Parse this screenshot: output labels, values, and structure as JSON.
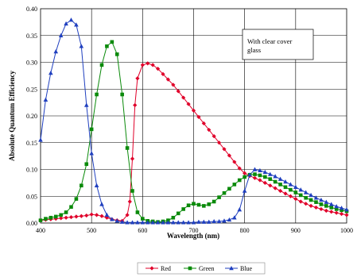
{
  "chart_data": {
    "type": "line",
    "xlabel": "Wavelength (nm)",
    "ylabel": "Absolute Quantum Efficiency",
    "xlim": [
      400,
      1000
    ],
    "ylim": [
      0,
      0.4
    ],
    "x_ticks": [
      "400",
      "500",
      "600",
      "700",
      "800",
      "900",
      "1000"
    ],
    "y_ticks": [
      "0.00",
      "0.05",
      "0.10",
      "0.15",
      "0.20",
      "0.25",
      "0.30",
      "0.35",
      "0.40"
    ],
    "grid": true,
    "legend_position": "bottom",
    "annotation": [
      "With clear cover",
      "glass"
    ],
    "series": [
      {
        "name": "Red",
        "color": "#e0002a",
        "marker": "diamond",
        "x": [
          400,
          410,
          420,
          430,
          440,
          450,
          460,
          470,
          480,
          490,
          500,
          510,
          520,
          530,
          540,
          550,
          560,
          570,
          575,
          580,
          585,
          590,
          600,
          610,
          620,
          630,
          640,
          650,
          660,
          670,
          680,
          690,
          700,
          710,
          720,
          730,
          740,
          750,
          760,
          770,
          780,
          790,
          800,
          810,
          820,
          830,
          840,
          850,
          860,
          870,
          880,
          890,
          900,
          910,
          920,
          930,
          940,
          950,
          960,
          970,
          980,
          990,
          1000
        ],
        "y": [
          0.005,
          0.006,
          0.007,
          0.008,
          0.009,
          0.01,
          0.011,
          0.012,
          0.013,
          0.014,
          0.016,
          0.015,
          0.013,
          0.01,
          0.007,
          0.005,
          0.004,
          0.015,
          0.04,
          0.12,
          0.22,
          0.27,
          0.295,
          0.298,
          0.295,
          0.288,
          0.278,
          0.268,
          0.258,
          0.246,
          0.234,
          0.222,
          0.21,
          0.198,
          0.186,
          0.174,
          0.162,
          0.15,
          0.138,
          0.126,
          0.114,
          0.102,
          0.093,
          0.088,
          0.084,
          0.08,
          0.075,
          0.07,
          0.065,
          0.06,
          0.055,
          0.05,
          0.045,
          0.04,
          0.036,
          0.032,
          0.029,
          0.026,
          0.023,
          0.021,
          0.019,
          0.017,
          0.015
        ]
      },
      {
        "name": "Green",
        "color": "#0a8a0a",
        "marker": "square",
        "x": [
          400,
          410,
          420,
          430,
          440,
          450,
          460,
          470,
          480,
          490,
          500,
          510,
          520,
          530,
          540,
          550,
          560,
          570,
          580,
          590,
          600,
          610,
          620,
          630,
          640,
          650,
          660,
          670,
          680,
          690,
          700,
          710,
          720,
          730,
          740,
          750,
          760,
          770,
          780,
          790,
          800,
          810,
          820,
          830,
          840,
          850,
          860,
          870,
          880,
          890,
          900,
          910,
          920,
          930,
          940,
          950,
          960,
          970,
          980,
          990,
          1000
        ],
        "y": [
          0.005,
          0.008,
          0.01,
          0.012,
          0.015,
          0.02,
          0.03,
          0.045,
          0.07,
          0.11,
          0.175,
          0.24,
          0.295,
          0.33,
          0.338,
          0.315,
          0.24,
          0.14,
          0.06,
          0.02,
          0.008,
          0.004,
          0.003,
          0.002,
          0.003,
          0.005,
          0.01,
          0.018,
          0.026,
          0.033,
          0.036,
          0.034,
          0.032,
          0.035,
          0.04,
          0.048,
          0.056,
          0.064,
          0.072,
          0.08,
          0.086,
          0.09,
          0.091,
          0.089,
          0.086,
          0.082,
          0.077,
          0.072,
          0.067,
          0.062,
          0.057,
          0.052,
          0.047,
          0.043,
          0.039,
          0.035,
          0.032,
          0.029,
          0.026,
          0.024,
          0.022
        ]
      },
      {
        "name": "Blue",
        "color": "#1f3fbf",
        "marker": "triangle",
        "x": [
          400,
          410,
          420,
          430,
          440,
          450,
          460,
          470,
          480,
          490,
          500,
          510,
          520,
          530,
          540,
          550,
          560,
          570,
          580,
          590,
          600,
          610,
          620,
          630,
          640,
          650,
          660,
          670,
          680,
          690,
          700,
          710,
          720,
          730,
          740,
          750,
          760,
          770,
          780,
          790,
          800,
          810,
          820,
          830,
          840,
          850,
          860,
          870,
          880,
          890,
          900,
          910,
          920,
          930,
          940,
          950,
          960,
          970,
          980,
          990,
          1000
        ],
        "y": [
          0.155,
          0.23,
          0.28,
          0.32,
          0.35,
          0.372,
          0.379,
          0.37,
          0.33,
          0.22,
          0.13,
          0.07,
          0.035,
          0.015,
          0.007,
          0.004,
          0.002,
          0.001,
          0.001,
          0.001,
          0.001,
          0.001,
          0.001,
          0.001,
          0.001,
          0.001,
          0.001,
          0.001,
          0.001,
          0.001,
          0.001,
          0.002,
          0.002,
          0.002,
          0.003,
          0.003,
          0.004,
          0.006,
          0.01,
          0.025,
          0.06,
          0.09,
          0.1,
          0.098,
          0.095,
          0.091,
          0.087,
          0.082,
          0.077,
          0.072,
          0.067,
          0.062,
          0.057,
          0.052,
          0.047,
          0.043,
          0.039,
          0.035,
          0.031,
          0.028,
          0.025
        ]
      }
    ]
  }
}
